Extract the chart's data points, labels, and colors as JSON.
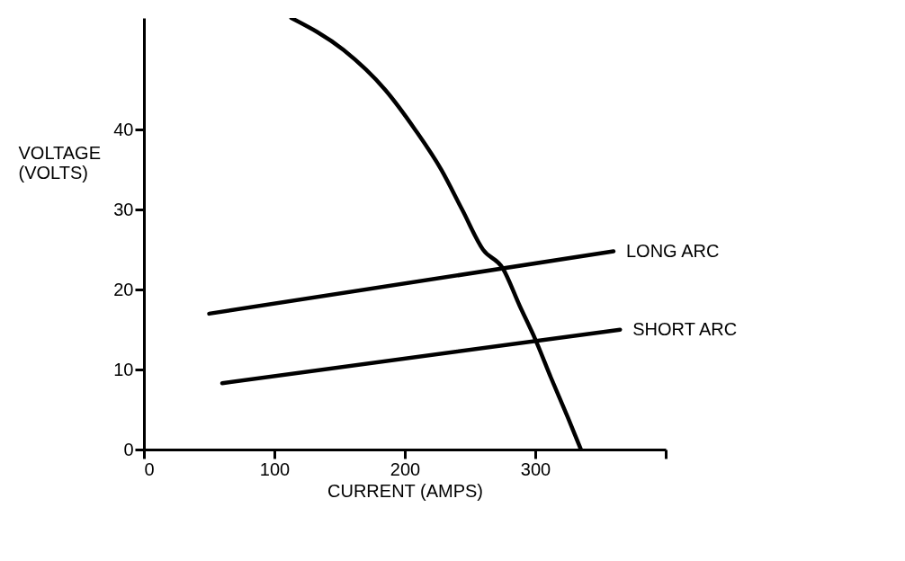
{
  "chart_data": {
    "type": "line",
    "xlabel": "CURRENT (AMPS)",
    "ylabel": "VOLTAGE (VOLTS)",
    "xlim": [
      0,
      400
    ],
    "ylim": [
      0,
      54
    ],
    "xticks": [
      0,
      100,
      200,
      300,
      {
        "value": 400,
        "label": null
      }
    ],
    "yticks": [
      0,
      10,
      20,
      30,
      40
    ],
    "grid": false,
    "marker": "none",
    "line_style": "solid",
    "series": [
      {
        "color": "#000000",
        "x": [
          113,
          153,
          185,
          208,
          228,
          244,
          260,
          275,
          288,
          300,
          312,
          325,
          335
        ],
        "values": [
          54,
          50,
          45,
          40,
          35,
          30,
          25,
          22.7,
          18,
          13.8,
          9,
          4,
          0
        ]
      },
      {
        "name": "LONG ARC",
        "color": "#000000",
        "x": [
          50,
          360
        ],
        "values": [
          17,
          24.8
        ]
      },
      {
        "name": "SHORT ARC",
        "color": "#000000",
        "x": [
          60,
          365
        ],
        "values": [
          8.3,
          15
        ]
      }
    ]
  }
}
